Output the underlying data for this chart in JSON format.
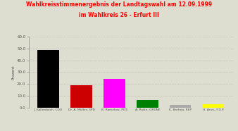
{
  "title_line1": "Wahlkreisstimmenergebnis der Landtagswahl am 12.09.1999",
  "title_line2": "im Wahlkreis 26 - Erfurt III",
  "title_color": "#ff0000",
  "ylabel": "Prozent",
  "categories": [
    "J. Kallenbach, CDU",
    "Dr. A. Müller, SPD",
    "B. Ramelow, PDS",
    "A. Ratte, GRÜNE",
    "K. Brehna, REP",
    "H. Anes, F.D.P."
  ],
  "values": [
    48.5,
    19.0,
    24.5,
    6.5,
    2.0,
    2.8
  ],
  "colors": [
    "#000000",
    "#cc0000",
    "#ff00ff",
    "#008000",
    "#aaaaaa",
    "#ffff00"
  ],
  "ylim": [
    0,
    60
  ],
  "yticks": [
    0.0,
    10.0,
    20.0,
    30.0,
    40.0,
    50.0,
    60.0
  ],
  "background_color": "#deded0",
  "grid_color": "#aaaaaa"
}
